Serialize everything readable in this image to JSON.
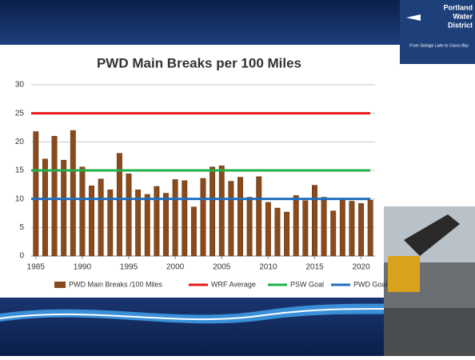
{
  "logo": {
    "lines": [
      "Portland",
      "Water",
      "District"
    ],
    "tagline": "From Sebago Lake to Casco Bay"
  },
  "chart_data": {
    "type": "bar",
    "title": "PWD Main Breaks per 100 Miles",
    "x": [
      1985,
      1986,
      1987,
      1988,
      1989,
      1990,
      1991,
      1992,
      1993,
      1994,
      1995,
      1996,
      1997,
      1998,
      1999,
      2000,
      2001,
      2002,
      2003,
      2004,
      2005,
      2006,
      2007,
      2008,
      2009,
      2010,
      2011,
      2012,
      2013,
      2014,
      2015,
      2016,
      2017,
      2018,
      2019,
      2020,
      2021
    ],
    "series": [
      {
        "name": "PWD Main Breaks /100 Miles",
        "color": "#8b4a1c",
        "values": [
          21.8,
          17,
          21,
          16.8,
          22,
          15.6,
          12.3,
          13.5,
          11.6,
          18,
          14.4,
          11.6,
          10.8,
          12.2,
          11,
          13.4,
          13.2,
          8.6,
          13.6,
          15.6,
          15.8,
          13.1,
          13.8,
          10.3,
          13.9,
          9.4,
          8.4,
          7.7,
          10.6,
          9.7,
          12.4,
          10.3,
          7.9,
          9.8,
          9.6,
          9.2,
          9.8
        ]
      }
    ],
    "reference_lines": [
      {
        "name": "WRF Average",
        "value": 25,
        "color": "#e8191b"
      },
      {
        "name": "PSW Goal",
        "value": 15,
        "color": "#1fb14a"
      },
      {
        "name": "PWD Goal",
        "value": 10,
        "color": "#1f6fc0"
      }
    ],
    "xlim": [
      1984.5,
      2021.5
    ],
    "xticks": [
      1985,
      1990,
      1995,
      2000,
      2005,
      2010,
      2015,
      2020
    ],
    "ylim": [
      0,
      30
    ],
    "yticks": [
      0,
      5,
      10,
      15,
      20,
      25,
      30
    ],
    "grid": true,
    "legend": "bottom"
  }
}
